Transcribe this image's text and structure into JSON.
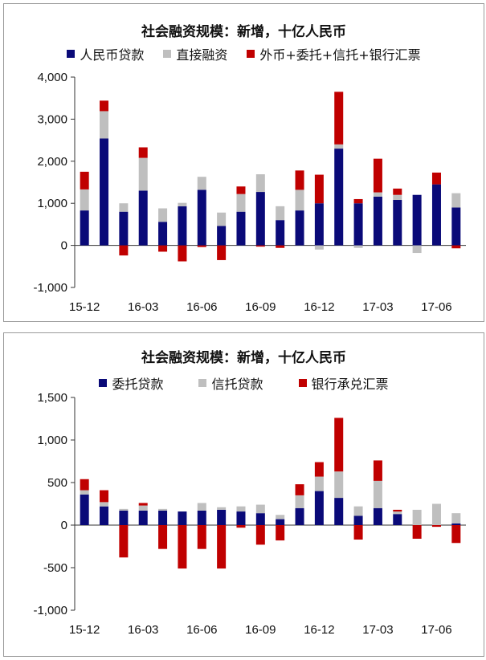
{
  "colors": {
    "navy": "#0a0a78",
    "gray": "#bfbfbf",
    "red": "#c00000"
  },
  "chart_data": [
    {
      "type": "bar",
      "stacked": true,
      "title": "社会融资规模：新增，十亿人民币",
      "ylim": [
        -1000,
        4000
      ],
      "yticks": [
        "4,000",
        "3,000",
        "2,000",
        "1,000",
        "0",
        "-1,000"
      ],
      "ytick_values": [
        4000,
        3000,
        2000,
        1000,
        0,
        -1000
      ],
      "xtick_labels": [
        "15-12",
        "16-03",
        "16-06",
        "16-09",
        "16-12",
        "17-03",
        "17-06"
      ],
      "xtick_indices": [
        0,
        3,
        6,
        9,
        12,
        15,
        18
      ],
      "categories": [
        "15-12",
        "16-01",
        "16-02",
        "16-03",
        "16-04",
        "16-05",
        "16-06",
        "16-07",
        "16-08",
        "16-09",
        "16-10",
        "16-11",
        "16-12",
        "17-01",
        "17-02",
        "17-03",
        "17-04",
        "17-05",
        "17-06",
        "17-07"
      ],
      "legend": [
        "人民币贷款",
        "直接融资",
        "外币+委托+信托+银行汇票"
      ],
      "series": [
        {
          "name": "人民币贷款",
          "color": "navy",
          "values": [
            830,
            2540,
            800,
            1300,
            560,
            930,
            1320,
            460,
            800,
            1270,
            600,
            830,
            1000,
            2300,
            1000,
            1160,
            1080,
            1200,
            1450,
            900
          ]
        },
        {
          "name": "直接融资",
          "color": "gray",
          "values": [
            500,
            650,
            200,
            780,
            320,
            80,
            310,
            320,
            420,
            420,
            330,
            490,
            -100,
            100,
            -60,
            100,
            120,
            -180,
            0,
            340
          ]
        },
        {
          "name": "外币+委托+信托+银行汇票",
          "color": "red",
          "values": [
            420,
            250,
            -240,
            250,
            -150,
            -380,
            -40,
            -350,
            180,
            -30,
            -60,
            460,
            680,
            1250,
            100,
            800,
            150,
            0,
            280,
            -70
          ]
        }
      ]
    },
    {
      "type": "bar",
      "stacked": true,
      "title": "社会融资规模：新增，十亿人民币",
      "ylim": [
        -1000,
        1500
      ],
      "yticks": [
        "1,500",
        "1,000",
        "500",
        "0",
        "-500",
        "-1,000"
      ],
      "ytick_values": [
        1500,
        1000,
        500,
        0,
        -500,
        -1000
      ],
      "xtick_labels": [
        "15-12",
        "16-03",
        "16-06",
        "16-09",
        "16-12",
        "17-03",
        "17-06"
      ],
      "xtick_indices": [
        0,
        3,
        6,
        9,
        12,
        15,
        18
      ],
      "categories": [
        "15-12",
        "16-01",
        "16-02",
        "16-03",
        "16-04",
        "16-05",
        "16-06",
        "16-07",
        "16-08",
        "16-09",
        "16-10",
        "16-11",
        "16-12",
        "17-01",
        "17-02",
        "17-03",
        "17-04",
        "17-05",
        "17-06",
        "17-07"
      ],
      "legend": [
        "委托贷款",
        "信托贷款",
        "银行承兑汇票"
      ],
      "series": [
        {
          "name": "委托贷款",
          "color": "navy",
          "values": [
            360,
            220,
            170,
            170,
            170,
            160,
            170,
            180,
            160,
            140,
            70,
            200,
            400,
            320,
            110,
            200,
            130,
            0,
            0,
            20
          ]
        },
        {
          "name": "信托贷款",
          "color": "gray",
          "values": [
            50,
            50,
            20,
            60,
            20,
            0,
            90,
            30,
            60,
            100,
            50,
            150,
            170,
            310,
            110,
            320,
            30,
            180,
            250,
            120
          ]
        },
        {
          "name": "银行承兑汇票",
          "color": "red",
          "values": [
            130,
            140,
            -380,
            30,
            -280,
            -510,
            -280,
            -510,
            -30,
            -230,
            -180,
            130,
            170,
            630,
            -170,
            240,
            20,
            -160,
            -20,
            -210
          ]
        }
      ]
    }
  ]
}
